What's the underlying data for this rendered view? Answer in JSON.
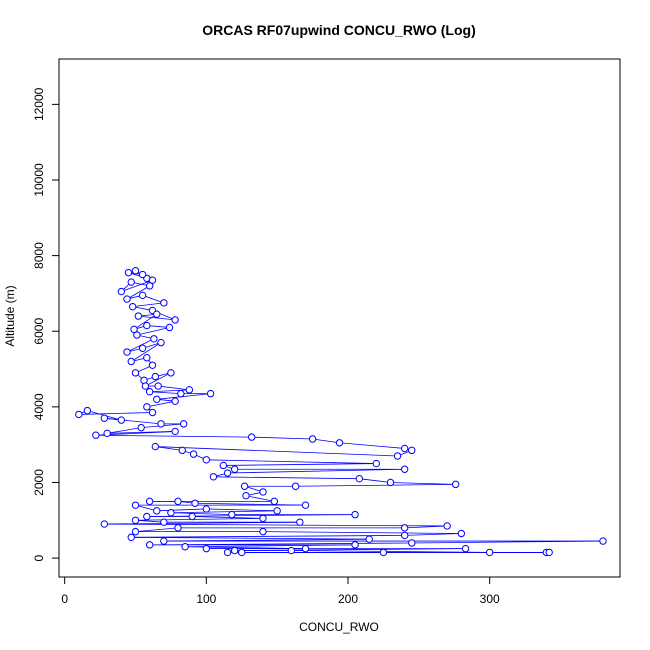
{
  "chart_data": {
    "type": "line",
    "title": "ORCAS RF07upwind CONCU_RWO (Log)",
    "xlabel": "CONCU_RWO",
    "ylabel": "Altitude (m)",
    "xlim": [
      -4,
      392
    ],
    "ylim": [
      -500,
      13200
    ],
    "x_ticks": [
      0,
      100,
      200,
      300
    ],
    "y_ticks": [
      0,
      2000,
      4000,
      6000,
      8000,
      10000,
      12000
    ],
    "series_color": "#0000ff",
    "series": [
      {
        "name": "CONCU_RWO",
        "points": [
          [
            50,
            7600
          ],
          [
            58,
            7400
          ],
          [
            45,
            7550
          ],
          [
            55,
            7500
          ],
          [
            62,
            7350
          ],
          [
            40,
            7050
          ],
          [
            47,
            7300
          ],
          [
            60,
            7200
          ],
          [
            44,
            6850
          ],
          [
            55,
            6950
          ],
          [
            70,
            6750
          ],
          [
            48,
            6650
          ],
          [
            62,
            6550
          ],
          [
            78,
            6300
          ],
          [
            52,
            6400
          ],
          [
            65,
            6450
          ],
          [
            49,
            6050
          ],
          [
            58,
            6150
          ],
          [
            74,
            6100
          ],
          [
            51,
            5900
          ],
          [
            63,
            5800
          ],
          [
            44,
            5450
          ],
          [
            55,
            5550
          ],
          [
            68,
            5700
          ],
          [
            47,
            5200
          ],
          [
            58,
            5300
          ],
          [
            62,
            5100
          ],
          [
            50,
            4900
          ],
          [
            56,
            4700
          ],
          [
            64,
            4800
          ],
          [
            75,
            4900
          ],
          [
            57,
            4550
          ],
          [
            66,
            4550
          ],
          [
            88,
            4450
          ],
          [
            60,
            4400
          ],
          [
            82,
            4350
          ],
          [
            103,
            4350
          ],
          [
            65,
            4200
          ],
          [
            78,
            4150
          ],
          [
            58,
            4000
          ],
          [
            62,
            3850
          ],
          [
            10,
            3800
          ],
          [
            16,
            3900
          ],
          [
            40,
            3650
          ],
          [
            28,
            3700
          ],
          [
            68,
            3550
          ],
          [
            84,
            3550
          ],
          [
            54,
            3450
          ],
          [
            30,
            3300
          ],
          [
            78,
            3350
          ],
          [
            22,
            3250
          ],
          [
            132,
            3200
          ],
          [
            175,
            3150
          ],
          [
            194,
            3050
          ],
          [
            240,
            2900
          ],
          [
            245,
            2850
          ],
          [
            235,
            2700
          ],
          [
            64,
            2950
          ],
          [
            83,
            2850
          ],
          [
            91,
            2750
          ],
          [
            100,
            2600
          ],
          [
            220,
            2500
          ],
          [
            112,
            2450
          ],
          [
            120,
            2350
          ],
          [
            240,
            2350
          ],
          [
            115,
            2250
          ],
          [
            105,
            2150
          ],
          [
            208,
            2100
          ],
          [
            230,
            2000
          ],
          [
            276,
            1950
          ],
          [
            163,
            1900
          ],
          [
            127,
            1900
          ],
          [
            140,
            1750
          ],
          [
            128,
            1650
          ],
          [
            148,
            1500
          ],
          [
            60,
            1500
          ],
          [
            80,
            1500
          ],
          [
            92,
            1450
          ],
          [
            170,
            1400
          ],
          [
            50,
            1400
          ],
          [
            65,
            1250
          ],
          [
            100,
            1300
          ],
          [
            150,
            1250
          ],
          [
            75,
            1200
          ],
          [
            118,
            1150
          ],
          [
            205,
            1150
          ],
          [
            58,
            1100
          ],
          [
            90,
            1100
          ],
          [
            140,
            1050
          ],
          [
            50,
            1000
          ],
          [
            70,
            950
          ],
          [
            166,
            950
          ],
          [
            28,
            900
          ],
          [
            270,
            850
          ],
          [
            240,
            800
          ],
          [
            80,
            800
          ],
          [
            50,
            700
          ],
          [
            140,
            700
          ],
          [
            280,
            650
          ],
          [
            240,
            600
          ],
          [
            47,
            550
          ],
          [
            215,
            500
          ],
          [
            70,
            450
          ],
          [
            380,
            450
          ],
          [
            245,
            400
          ],
          [
            60,
            350
          ],
          [
            205,
            350
          ],
          [
            85,
            300
          ],
          [
            170,
            250
          ],
          [
            100,
            250
          ],
          [
            283,
            250
          ],
          [
            120,
            200
          ],
          [
            160,
            200
          ],
          [
            300,
            150
          ],
          [
            340,
            150
          ],
          [
            115,
            150
          ],
          [
            225,
            150
          ],
          [
            125,
            150
          ],
          [
            342,
            150
          ]
        ]
      }
    ]
  }
}
